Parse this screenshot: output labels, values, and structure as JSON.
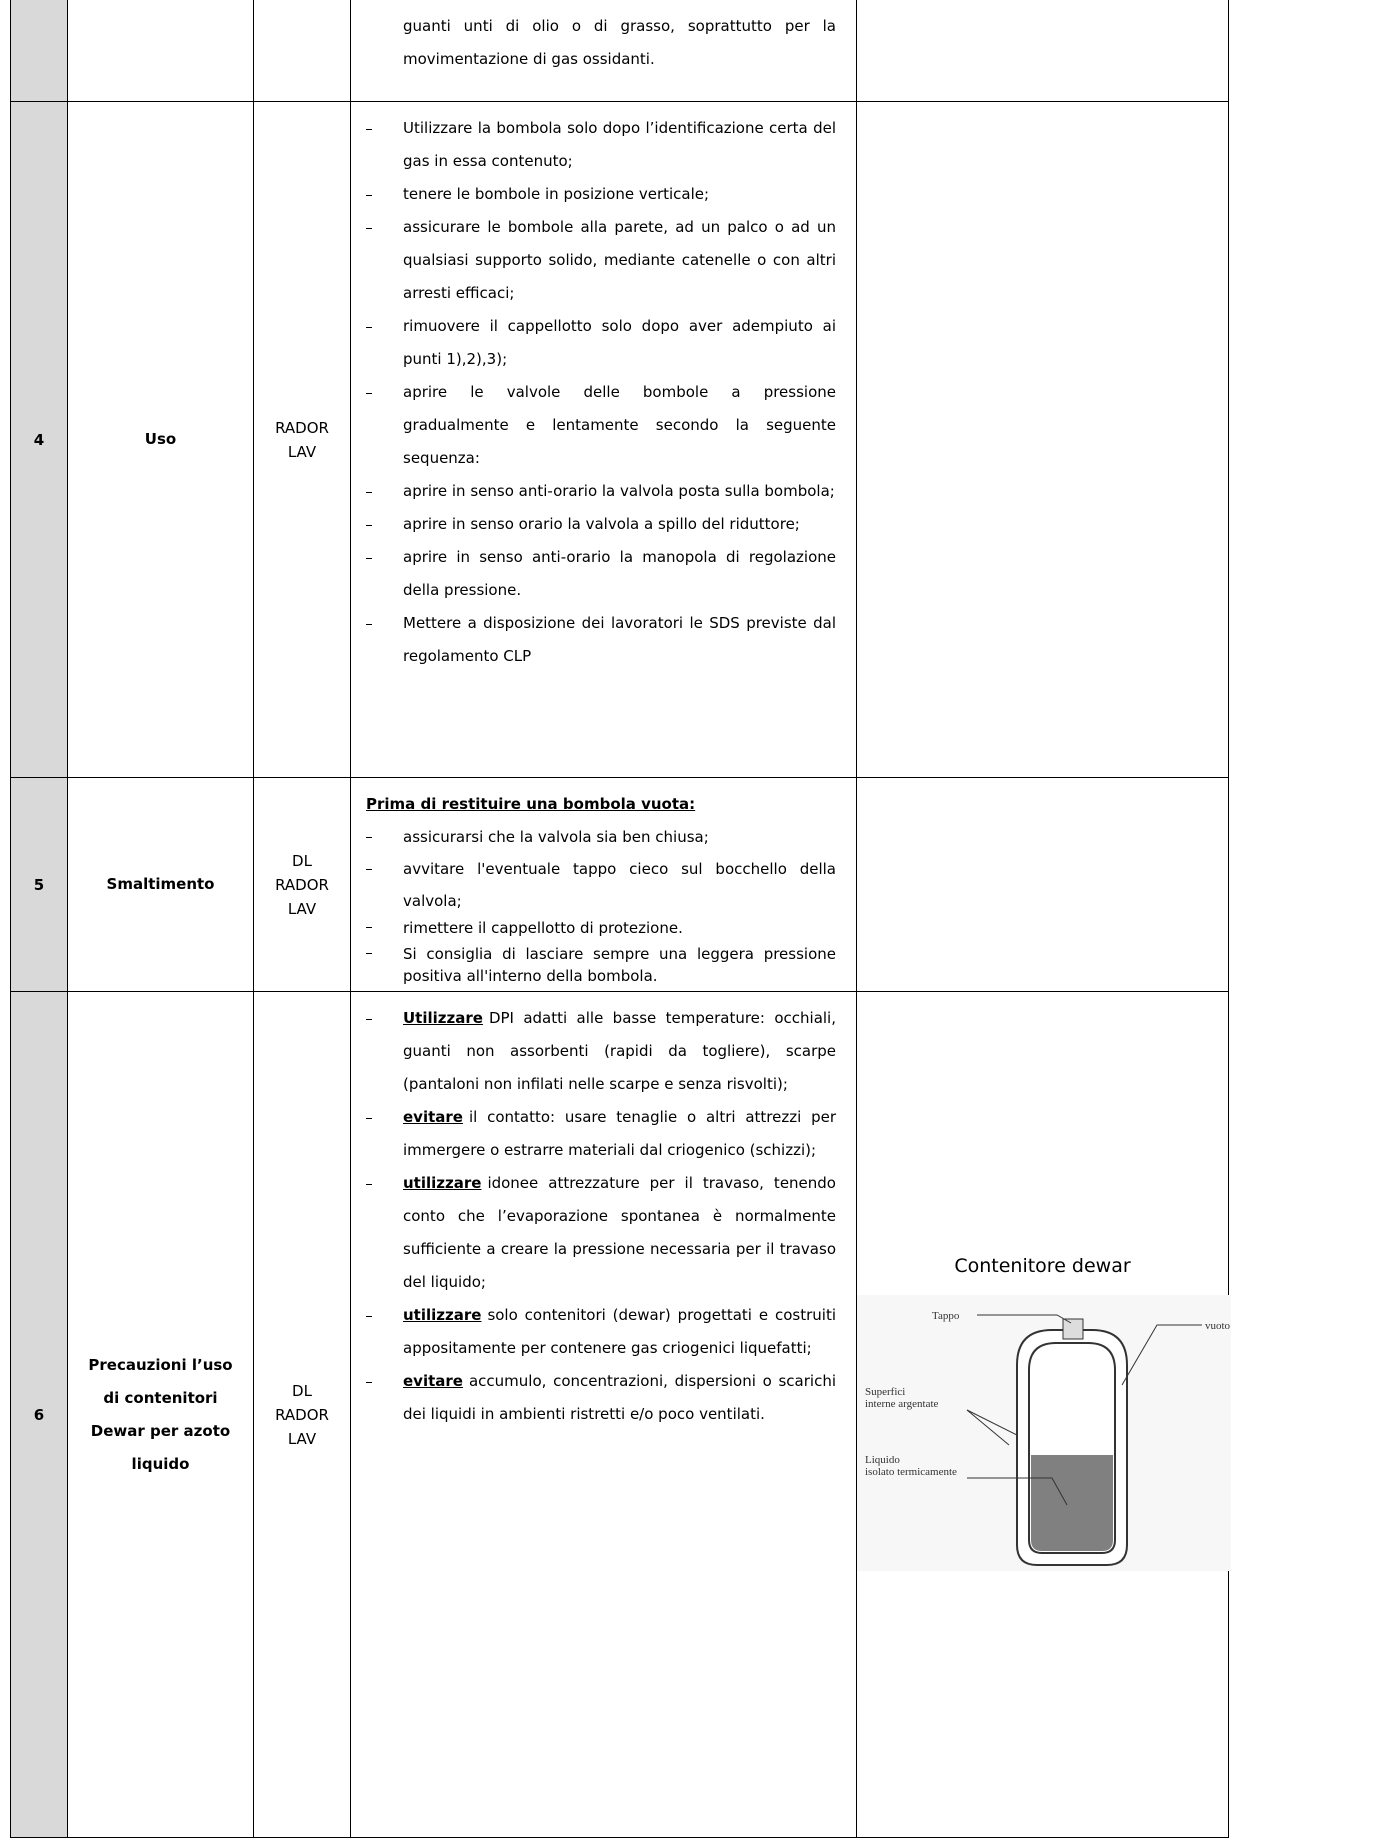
{
  "table": {
    "rows": [
      {
        "text": "guanti unti di olio o di grasso, soprattutto per la movimentazione di gas ossidanti."
      },
      {
        "number": "4",
        "title": "Uso",
        "responsible": [
          "RADOR",
          "LAV"
        ],
        "items": [
          {
            "text": "Utilizzare la bombola solo dopo l’identificazione certa del gas in essa contenuto;"
          },
          {
            "text": "tenere le bombole in posizione verticale;"
          },
          {
            "text": "assicurare le bombole alla parete, ad un palco o ad un qualsiasi supporto solido, mediante catenelle o con altri arresti efficaci;"
          },
          {
            "text": "rimuovere il cappellotto solo dopo aver adempiuto ai punti 1),2),3);"
          },
          {
            "text": "aprire le valvole delle bombole a pressione gradualmente e lentamente secondo la seguente sequenza:"
          },
          {
            "text": "aprire in senso anti-orario la valvola posta sulla bombola;"
          },
          {
            "text": "aprire in senso orario la valvola a spillo del riduttore;"
          },
          {
            "text": "aprire in senso anti-orario la manopola di regolazione della pressione."
          },
          {
            "text": "Mettere a disposizione dei lavoratori le SDS previste dal regolamento CLP"
          }
        ]
      },
      {
        "number": "5",
        "title": "Smaltimento",
        "responsible": [
          "DL",
          "RADOR",
          "LAV"
        ],
        "heading": "Prima di restituire una bombola vuota:",
        "items": [
          {
            "text": "assicurarsi che la valvola sia ben chiusa;"
          },
          {
            "text": "avvitare l'eventuale tappo cieco sul bocchello della valvola;"
          },
          {
            "text": "rimettere il cappellotto di protezione."
          },
          {
            "text": "Si consiglia di lasciare sempre una leggera pressione positiva all'interno della bombola."
          }
        ]
      },
      {
        "number": "6",
        "title": "Precauzioni l’uso di contenitori Dewar per azoto liquido",
        "responsible": [
          "DL",
          "RADOR",
          "LAV"
        ],
        "items": [
          {
            "lead": "Utilizzare",
            "text": "DPI adatti alle basse temperature: occhiali, guanti non assorbenti (rapidi da togliere), scarpe (pantaloni non infilati nelle scarpe e senza risvolti);"
          },
          {
            "lead": "evitare",
            "text": "il contatto: usare tenaglie o altri attrezzi per immergere o estrarre materiali dal criogenico (schizzi);"
          },
          {
            "lead": "utilizzare",
            "text": "idonee attrezzature per il travaso, tenendo conto che l’evaporazione spontanea è normalmente sufficiente a creare la pressione necessaria per il travaso del liquido;"
          },
          {
            "lead": "utilizzare",
            "text": "solo contenitori (dewar) progettati e costruiti appositamente per contenere gas criogenici liquefatti;"
          },
          {
            "lead": "evitare",
            "text": "accumulo, concentrazioni, dispersioni o scarichi dei liquidi in ambienti ristretti e/o poco ventilati."
          }
        ],
        "figure": {
          "caption": "Contenitore dewar",
          "labels": {
            "cap": "Tappo",
            "vacuum": "vuoto",
            "walls": "Superfici interne argentate",
            "liquid": "Liquido isolato termicamente"
          }
        }
      }
    ]
  }
}
